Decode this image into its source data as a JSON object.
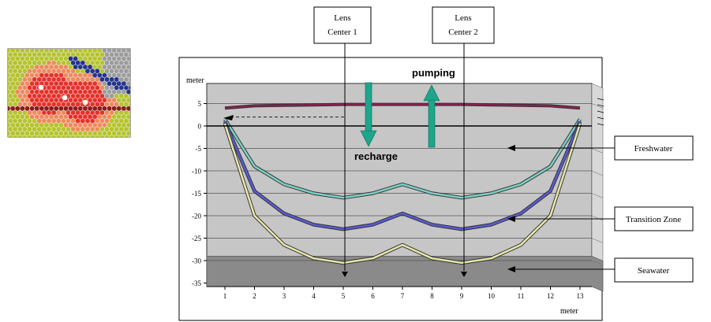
{
  "labels": {
    "y_unit": "meter",
    "x_unit": "meter",
    "lens1_line1": "Lens",
    "lens1_line2": "Center 1",
    "lens2_line1": "Lens",
    "lens2_line2": "Center 2",
    "pumping": "pumping",
    "recharge": "recharge",
    "freshwater": "Freshwater",
    "transition_zone": "Transition Zone",
    "seawater": "Seawater"
  },
  "colors": {
    "plot_bg": "#c6c6c6",
    "seawater_band": "#8a8a8a",
    "water_table": "#8a2050",
    "upper_curve": "#7ccfc4",
    "middle_curve": "#5a5ad2",
    "lower_curve": "#e6e6aa",
    "arrow": "#1ea58a",
    "hex_red": "#e5312b",
    "hex_salmon": "#ee8a5e",
    "hex_yellowgreen": "#b5c42c",
    "hex_blue": "#24348c",
    "hex_gray": "#9c9c9c",
    "hex_darkred": "#8a1c1c"
  },
  "chart_data": {
    "type": "line",
    "x": [
      1,
      2,
      3,
      4,
      5,
      6,
      7,
      8,
      9,
      10,
      11,
      12,
      13
    ],
    "x_ticks": [
      "1",
      "2",
      "3",
      "4",
      "5",
      "6",
      "7",
      "8",
      "9",
      "10",
      "11",
      "12",
      "13"
    ],
    "y_ticks": [
      "5",
      "0",
      "-5",
      "-10",
      "-15",
      "-20",
      "-25",
      "-30",
      "-35"
    ],
    "ylim": [
      -35,
      7
    ],
    "series": [
      {
        "key": "water_table",
        "values": [
          4.0,
          4.5,
          4.6,
          4.7,
          4.8,
          4.8,
          4.8,
          4.8,
          4.8,
          4.7,
          4.6,
          4.5,
          4.0
        ]
      },
      {
        "key": "upper_curve",
        "values": [
          1.5,
          -9.0,
          -13.0,
          -15.0,
          -16.0,
          -15.0,
          -13.0,
          -15.0,
          -16.0,
          -15.0,
          -13.0,
          -9.0,
          1.5
        ]
      },
      {
        "key": "middle_curve",
        "values": [
          1.0,
          -14.5,
          -19.5,
          -22.0,
          -23.0,
          -22.0,
          -19.5,
          -22.0,
          -23.0,
          -22.0,
          -19.5,
          -14.5,
          1.0
        ]
      },
      {
        "key": "lower_curve",
        "values": [
          0.5,
          -20.0,
          -26.5,
          -29.5,
          -30.5,
          -29.5,
          -26.5,
          -29.5,
          -30.5,
          -29.5,
          -26.5,
          -20.0,
          0.5
        ]
      }
    ],
    "seawater_top": -29,
    "lens_centers": [
      5,
      9
    ]
  }
}
